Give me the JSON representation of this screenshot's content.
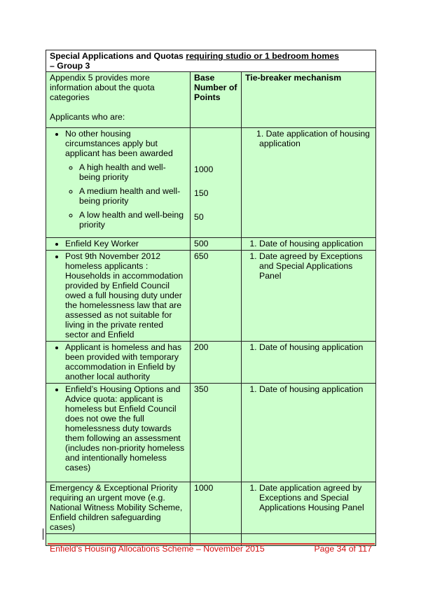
{
  "table": {
    "title_plain": "Special Applications and Quotas ",
    "title_underlined": "requiring studio or 1 bedroom homes",
    "title_suffix": "– Group 3",
    "header": {
      "col1_line1": "Appendix 5 provides more information about the quota categories",
      "col1_line2": "Applicants who are:",
      "col2": "Base Number of Points",
      "col3": "Tie-breaker mechanism"
    },
    "rows": [
      {
        "text": "No other housing circumstances apply but applicant has been awarded",
        "sub": [
          {
            "text": "A high health and well-being priority",
            "points": "1000"
          },
          {
            "text": "A medium health and well-being priority",
            "points": "150"
          },
          {
            "text": "A low health and well-being priority",
            "points": "50"
          }
        ],
        "tiebreaker": "1. Date application of housing application"
      },
      {
        "text": "Enfield Key Worker",
        "points": "500",
        "tiebreaker": "Date of housing application"
      },
      {
        "text": "Post 9th November 2012 homeless applicants : Households in accommodation provided by Enfield Council owed a full housing duty under the homelessness law that are assessed as not suitable for living in the private rented sector and Enfield",
        "points": "650",
        "tiebreaker": "Date agreed by Exceptions and Special Applications Panel"
      },
      {
        "text": "Applicant is homeless and has been provided with temporary accommodation in Enfield by another local authority",
        "points": "200",
        "tiebreaker": "Date of housing application"
      },
      {
        "text": "Enfield’s Housing Options and Advice quota:  applicant is homeless but Enfield Council does not owe the full homelessness duty towards them following an assessment (includes non-priority homeless and intentionally homeless cases)",
        "points": "350",
        "tiebreaker": "Date of housing application"
      },
      {
        "text": "Emergency & Exceptional Priority requiring an urgent move (e.g. National Witness Mobility Scheme, Enfield children safeguarding cases)",
        "points": "1000",
        "tiebreaker": "Date application agreed by Exceptions and Special Applications Housing Panel"
      }
    ]
  },
  "footer": {
    "left": "Enfield’s Housing Allocations Scheme – November 2015",
    "right": "Page 34 of 117"
  },
  "colors": {
    "cell_bg": "#ccffcc",
    "footer": "#d01010"
  }
}
